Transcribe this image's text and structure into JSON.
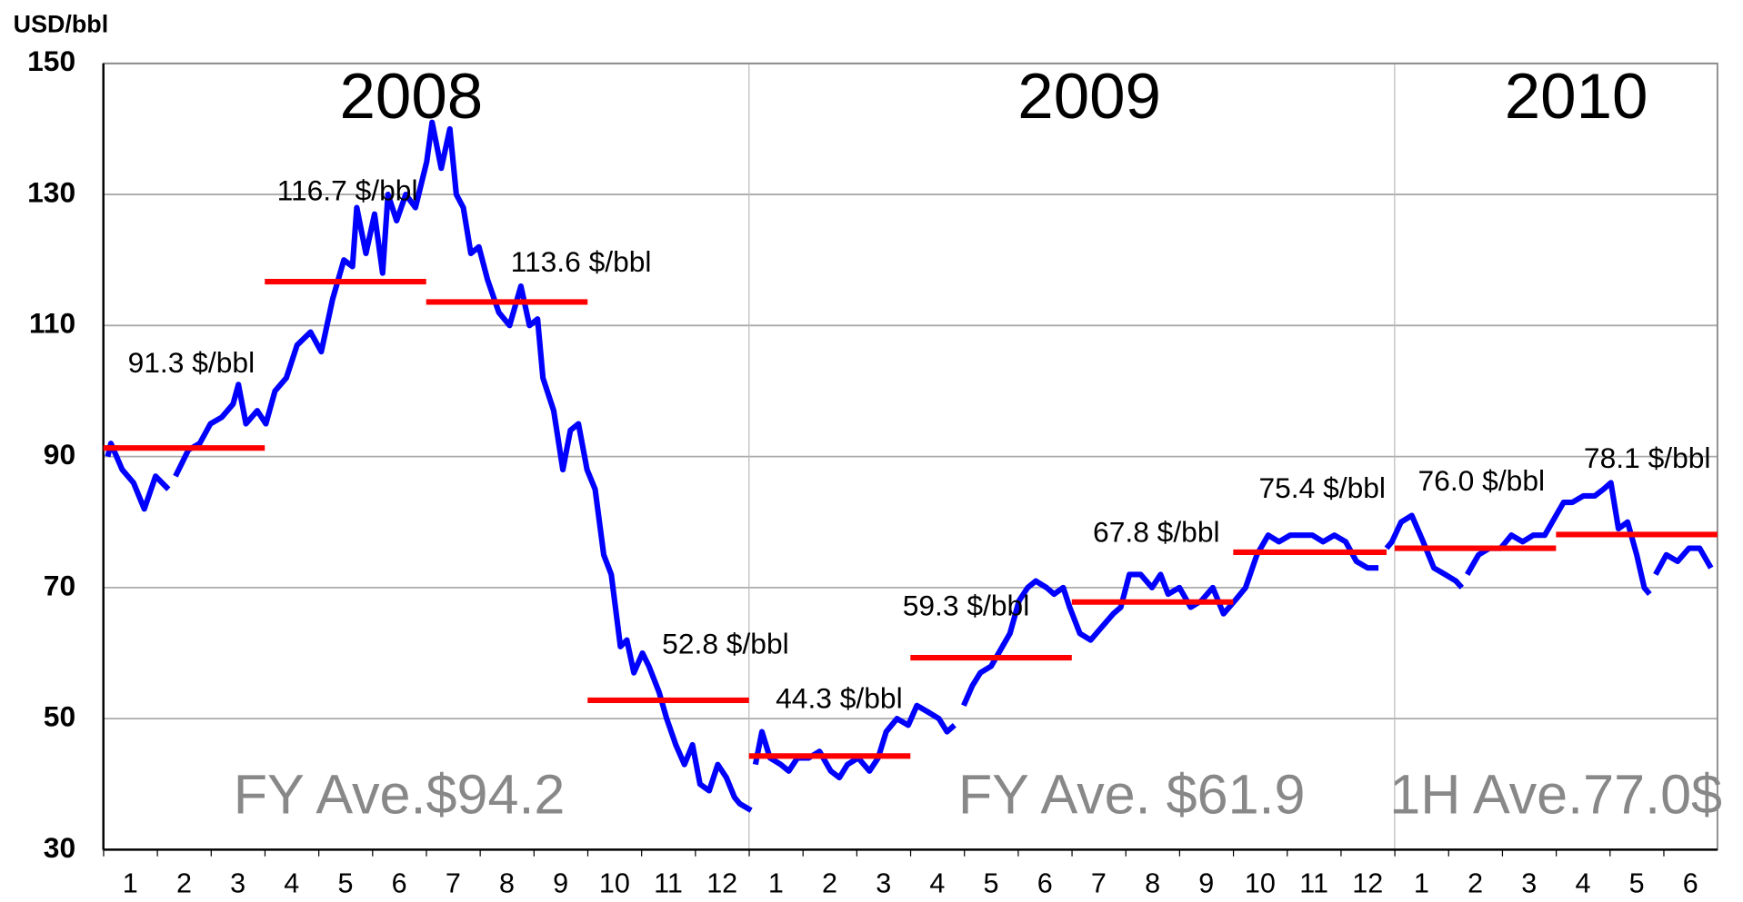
{
  "chart_data": {
    "type": "line",
    "y_label": "USD/bbl",
    "ylim": [
      30,
      150
    ],
    "yticks": [
      30,
      50,
      70,
      90,
      110,
      130,
      150
    ],
    "xlim": [
      0,
      30
    ],
    "xticks": [
      {
        "value": 0.5,
        "label": "1"
      },
      {
        "value": 1.5,
        "label": "2"
      },
      {
        "value": 2.5,
        "label": "3"
      },
      {
        "value": 3.5,
        "label": "4"
      },
      {
        "value": 4.5,
        "label": "5"
      },
      {
        "value": 5.5,
        "label": "6"
      },
      {
        "value": 6.5,
        "label": "7"
      },
      {
        "value": 7.5,
        "label": "8"
      },
      {
        "value": 8.5,
        "label": "9"
      },
      {
        "value": 9.5,
        "label": "10"
      },
      {
        "value": 10.5,
        "label": "11"
      },
      {
        "value": 11.5,
        "label": "12"
      },
      {
        "value": 12.5,
        "label": "1"
      },
      {
        "value": 13.5,
        "label": "2"
      },
      {
        "value": 14.5,
        "label": "3"
      },
      {
        "value": 15.5,
        "label": "4"
      },
      {
        "value": 16.5,
        "label": "5"
      },
      {
        "value": 17.5,
        "label": "6"
      },
      {
        "value": 18.5,
        "label": "7"
      },
      {
        "value": 19.5,
        "label": "8"
      },
      {
        "value": 20.5,
        "label": "9"
      },
      {
        "value": 21.5,
        "label": "10"
      },
      {
        "value": 22.5,
        "label": "11"
      },
      {
        "value": 23.5,
        "label": "12"
      },
      {
        "value": 24.5,
        "label": "1"
      },
      {
        "value": 25.5,
        "label": "2"
      },
      {
        "value": 26.5,
        "label": "3"
      },
      {
        "value": 27.5,
        "label": "4"
      },
      {
        "value": 28.5,
        "label": "5"
      },
      {
        "value": 29.5,
        "label": "6"
      }
    ],
    "year_dividers": [
      12,
      24
    ],
    "years": [
      "2008",
      "2009",
      "2010"
    ],
    "period_averages": [
      "FY Ave.$94.2",
      "FY Ave. $61.9",
      "1H Ave.77.0$"
    ],
    "grid": true,
    "series": [
      {
        "color": "#0000ff",
        "x": [
          0.08,
          0.14,
          0.35,
          0.56,
          0.76,
          0.97,
          1.21,
          null,
          1.34,
          1.58,
          1.79,
          1.99,
          2.2,
          2.41,
          2.51,
          2.65,
          2.86,
          3.02,
          3.19,
          3.4,
          3.6,
          3.85,
          4.05,
          4.26,
          4.47,
          4.63,
          4.71,
          4.88,
          5.04,
          5.19,
          5.29,
          5.45,
          5.62,
          5.8,
          6.01,
          6.11,
          6.28,
          6.44,
          6.56,
          6.69,
          6.83,
          6.98,
          7.14,
          7.35,
          7.55,
          7.76,
          7.92,
          8.07,
          8.17,
          8.37,
          8.54,
          8.68,
          8.83,
          8.99,
          9.14,
          9.3,
          9.44,
          9.61,
          9.73,
          9.86,
          10.02,
          10.14,
          10.33,
          10.47,
          10.64,
          10.8,
          10.95,
          11.09,
          11.26,
          11.42,
          11.58,
          11.73,
          11.83,
          12.04,
          null,
          12.12,
          12.24,
          12.39,
          12.59,
          12.74,
          12.9,
          13.11,
          13.31,
          13.52,
          13.68,
          13.83,
          14.03,
          14.24,
          14.4,
          14.55,
          14.75,
          14.96,
          15.12,
          15.33,
          15.53,
          15.68,
          15.82,
          null,
          15.99,
          16.15,
          16.3,
          16.5,
          16.71,
          16.85,
          17.02,
          17.18,
          17.33,
          17.53,
          17.67,
          17.84,
          17.96,
          18.15,
          18.35,
          18.56,
          18.77,
          18.91,
          19.07,
          19.28,
          19.49,
          19.65,
          19.79,
          20,
          20.21,
          20.41,
          20.62,
          20.82,
          21.03,
          21.23,
          21.44,
          21.65,
          21.85,
          22.06,
          22.26,
          22.47,
          22.67,
          22.88,
          23.09,
          23.29,
          23.5,
          23.7,
          null,
          23.85,
          23.95,
          24.12,
          24.32,
          24.53,
          24.73,
          24.94,
          25.14,
          25.25,
          null,
          25.35,
          25.56,
          25.76,
          25.97,
          26.17,
          26.38,
          26.58,
          26.79,
          27,
          27.14,
          27.3,
          27.51,
          27.72,
          27.88,
          28.02,
          28.16,
          28.33,
          28.5,
          28.64,
          28.74,
          null,
          28.85,
          29.05,
          29.26,
          29.47,
          29.67,
          29.88
        ],
        "values": [
          90,
          92,
          88,
          86,
          82,
          87,
          85,
          null,
          87,
          91,
          92,
          95,
          96,
          98,
          101,
          95,
          97,
          95,
          100,
          102,
          107,
          109,
          106,
          114,
          120,
          119,
          128,
          121,
          127,
          118,
          130,
          126,
          130,
          128,
          135,
          141,
          134,
          140,
          130,
          128,
          121,
          122,
          117,
          112,
          110,
          116,
          110,
          111,
          102,
          97,
          88,
          94,
          95,
          88,
          85,
          75,
          72,
          61,
          62,
          57,
          60,
          58,
          54,
          50,
          46,
          43,
          46,
          40,
          39,
          43,
          41,
          38,
          37,
          36,
          null,
          43,
          48,
          44,
          43,
          42,
          44,
          44,
          45,
          42,
          41,
          43,
          44,
          42,
          44,
          48,
          50,
          49,
          52,
          51,
          50,
          48,
          49,
          null,
          52,
          55,
          57,
          58,
          61,
          63,
          68,
          70,
          71,
          70,
          69,
          70,
          67,
          63,
          62,
          64,
          66,
          67,
          72,
          72,
          70,
          72,
          69,
          70,
          67,
          68,
          70,
          66,
          68,
          70,
          75,
          78,
          77,
          78,
          78,
          78,
          77,
          78,
          77,
          74,
          73,
          73,
          null,
          76,
          77,
          80,
          81,
          77,
          73,
          72,
          71,
          70,
          null,
          72,
          75,
          76,
          76,
          78,
          77,
          78,
          78,
          81,
          83,
          83,
          84,
          84,
          85,
          86,
          79,
          80,
          75,
          70,
          69,
          null,
          72,
          75,
          74,
          76,
          76,
          73
        ]
      }
    ],
    "quarter_averages": {
      "color": "#ff0000",
      "x_start": [
        0,
        3,
        6,
        9,
        12,
        15,
        18,
        21,
        24,
        27
      ],
      "x_end": [
        3,
        6,
        9,
        12,
        15,
        18,
        21,
        23.85,
        27,
        30
      ],
      "values": [
        91.3,
        116.7,
        113.6,
        52.8,
        44.3,
        59.3,
        67.8,
        75.4,
        76.0,
        78.1
      ],
      "value_labels": [
        "91.3 $/bbl",
        "116.7 $/bbl",
        "113.6 $/bbl",
        "52.8 $/bbl",
        "44.3 $/bbl",
        "59.3 $/bbl",
        "67.8 $/bbl",
        "75.4 $/bbl",
        "76.0 $/bbl",
        "78.1 $/bbl"
      ]
    }
  }
}
